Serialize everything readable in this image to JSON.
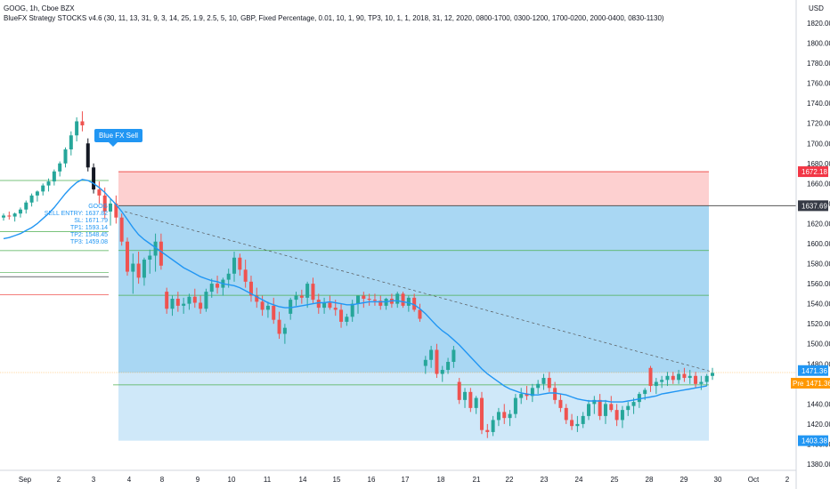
{
  "header": {
    "symbol_line": "GOOG, 1h, Cboe BZX",
    "indicator_line": "BlueFX Strategy STOCKS v4.6 (30, 11, 13, 31, 9, 3, 14, 25, 1.9, 2.5, 5, 10, GBP, Fixed Percentage, 0.01, 10, 1, 90, TP3, 10, 1, 1, 2018, 31, 12, 2020, 0800-1700, 0300-1200, 1700-0200, 2000-0400, 0830-1130)"
  },
  "signal_label": "Blue FX Sell",
  "info_block": {
    "ticker": "GOOG",
    "sell_entry": "SELL ENTRY: 1637.82",
    "sl": "SL: 1671.79",
    "tp1": "TP1: 1593.14",
    "tp2": "TP2: 1548.45",
    "tp3": "TP3: 1459.08"
  },
  "currency": "USD",
  "price_labels": {
    "sl": "1672.18",
    "entry": "1637.69",
    "current": "1471.36",
    "pre_tag": "Pre",
    "pre_value": "1471.36",
    "bottom": "1403.38"
  },
  "colors": {
    "bull": "#26a69a",
    "bear": "#ef5350",
    "accent_blue": "#2196f3",
    "sl_zone": "#fdd0d0",
    "profit_zone": "#a9d7f3",
    "lower_zone": "#cfe8f9",
    "pre_orange": "#ff9800",
    "sl_red": "#f23645",
    "entry_gray": "#363a45"
  },
  "chart_data": {
    "type": "candlestick",
    "title": "",
    "ylim": [
      1365,
      1840
    ],
    "y_ticks": [
      1380,
      1400,
      1420,
      1440,
      1460,
      1480,
      1500,
      1520,
      1540,
      1560,
      1580,
      1600,
      1620,
      1640,
      1660,
      1680,
      1700,
      1720,
      1740,
      1760,
      1780,
      1800,
      1820
    ],
    "x_ticks": [
      "Sep",
      "2",
      "3",
      "4",
      "8",
      "9",
      "10",
      "11",
      "14",
      "15",
      "16",
      "17",
      "18",
      "21",
      "22",
      "23",
      "24",
      "25",
      "28",
      "29",
      "30",
      "Oct",
      "2"
    ],
    "levels": {
      "stop_loss": 1671.79,
      "entry": 1637.82,
      "tp1": 1593.14,
      "tp2": 1548.45,
      "tp3": 1459.08,
      "zone_bottom": 1403.38,
      "current": 1471.36
    },
    "candles": [
      [
        1626,
        1630,
        1623,
        1628
      ],
      [
        1628,
        1632,
        1624,
        1627
      ],
      [
        1627,
        1631,
        1622,
        1630
      ],
      [
        1630,
        1636,
        1626,
        1634
      ],
      [
        1634,
        1643,
        1630,
        1641
      ],
      [
        1641,
        1650,
        1637,
        1648
      ],
      [
        1648,
        1653,
        1642,
        1652
      ],
      [
        1652,
        1660,
        1648,
        1658
      ],
      [
        1658,
        1665,
        1652,
        1662
      ],
      [
        1662,
        1674,
        1658,
        1672
      ],
      [
        1672,
        1682,
        1667,
        1680
      ],
      [
        1680,
        1696,
        1676,
        1694
      ],
      [
        1694,
        1712,
        1688,
        1708
      ],
      [
        1708,
        1726,
        1702,
        1722
      ],
      [
        1722,
        1732,
        1712,
        1718
      ],
      [
        1700,
        1705,
        1672,
        1676
      ],
      [
        1676,
        1680,
        1650,
        1654
      ],
      [
        1654,
        1662,
        1640,
        1648
      ],
      [
        1648,
        1656,
        1625,
        1632
      ],
      [
        1632,
        1645,
        1618,
        1640
      ],
      [
        1640,
        1648,
        1620,
        1626
      ],
      [
        1626,
        1630,
        1598,
        1602
      ],
      [
        1602,
        1606,
        1568,
        1572
      ],
      [
        1572,
        1590,
        1550,
        1580
      ],
      [
        1580,
        1592,
        1560,
        1566
      ],
      [
        1566,
        1586,
        1558,
        1584
      ],
      [
        1584,
        1594,
        1570,
        1588
      ],
      [
        1588,
        1610,
        1572,
        1602
      ],
      [
        1602,
        1610,
        1574,
        1578
      ],
      [
        1552,
        1556,
        1530,
        1535
      ],
      [
        1535,
        1548,
        1528,
        1545
      ],
      [
        1545,
        1552,
        1532,
        1538
      ],
      [
        1538,
        1546,
        1530,
        1540
      ],
      [
        1540,
        1550,
        1534,
        1547
      ],
      [
        1547,
        1555,
        1536,
        1541
      ],
      [
        1541,
        1548,
        1530,
        1535
      ],
      [
        1535,
        1555,
        1532,
        1552
      ],
      [
        1552,
        1565,
        1546,
        1560
      ],
      [
        1560,
        1568,
        1550,
        1556
      ],
      [
        1556,
        1566,
        1548,
        1564
      ],
      [
        1564,
        1575,
        1556,
        1570
      ],
      [
        1570,
        1592,
        1562,
        1586
      ],
      [
        1586,
        1590,
        1568,
        1574
      ],
      [
        1574,
        1584,
        1556,
        1562
      ],
      [
        1562,
        1568,
        1542,
        1548
      ],
      [
        1548,
        1556,
        1536,
        1542
      ],
      [
        1542,
        1548,
        1528,
        1534
      ],
      [
        1534,
        1542,
        1526,
        1538
      ],
      [
        1538,
        1546,
        1520,
        1524
      ],
      [
        1524,
        1532,
        1505,
        1510
      ],
      [
        1510,
        1520,
        1500,
        1516
      ],
      [
        1530,
        1546,
        1524,
        1544
      ],
      [
        1544,
        1552,
        1538,
        1548
      ],
      [
        1548,
        1554,
        1540,
        1546
      ],
      [
        1546,
        1562,
        1536,
        1560
      ],
      [
        1560,
        1566,
        1540,
        1544
      ],
      [
        1544,
        1550,
        1530,
        1536
      ],
      [
        1536,
        1546,
        1530,
        1541
      ],
      [
        1541,
        1548,
        1534,
        1536
      ],
      [
        1536,
        1544,
        1528,
        1534
      ],
      [
        1534,
        1540,
        1516,
        1522
      ],
      [
        1522,
        1530,
        1518,
        1527
      ],
      [
        1527,
        1544,
        1522,
        1540
      ],
      [
        1540,
        1548,
        1530,
        1548
      ],
      [
        1548,
        1552,
        1536,
        1545
      ],
      [
        1545,
        1550,
        1538,
        1544
      ],
      [
        1544,
        1550,
        1538,
        1543
      ],
      [
        1543,
        1548,
        1534,
        1538
      ],
      [
        1538,
        1546,
        1534,
        1545
      ],
      [
        1545,
        1550,
        1536,
        1540
      ],
      [
        1540,
        1552,
        1536,
        1550
      ],
      [
        1550,
        1552,
        1536,
        1538
      ],
      [
        1538,
        1548,
        1532,
        1546
      ],
      [
        1546,
        1550,
        1532,
        1534
      ],
      [
        1534,
        1540,
        1522,
        1525
      ],
      [
        1478,
        1488,
        1470,
        1484
      ],
      [
        1484,
        1498,
        1476,
        1494
      ],
      [
        1494,
        1500,
        1466,
        1470
      ],
      [
        1470,
        1478,
        1462,
        1474
      ],
      [
        1474,
        1486,
        1470,
        1482
      ],
      [
        1482,
        1498,
        1476,
        1494
      ],
      [
        1462,
        1466,
        1440,
        1444
      ],
      [
        1444,
        1456,
        1436,
        1452
      ],
      [
        1452,
        1456,
        1432,
        1436
      ],
      [
        1436,
        1448,
        1430,
        1446
      ],
      [
        1446,
        1452,
        1410,
        1414
      ],
      [
        1414,
        1420,
        1406,
        1412
      ],
      [
        1412,
        1428,
        1408,
        1424
      ],
      [
        1424,
        1436,
        1418,
        1432
      ],
      [
        1432,
        1440,
        1420,
        1426
      ],
      [
        1426,
        1434,
        1418,
        1430
      ],
      [
        1430,
        1450,
        1426,
        1446
      ],
      [
        1446,
        1456,
        1440,
        1450
      ],
      [
        1450,
        1458,
        1444,
        1448
      ],
      [
        1448,
        1460,
        1442,
        1456
      ],
      [
        1456,
        1464,
        1450,
        1460
      ],
      [
        1460,
        1470,
        1454,
        1466
      ],
      [
        1466,
        1472,
        1452,
        1456
      ],
      [
        1456,
        1462,
        1440,
        1444
      ],
      [
        1444,
        1450,
        1432,
        1436
      ],
      [
        1436,
        1440,
        1420,
        1424
      ],
      [
        1424,
        1430,
        1414,
        1418
      ],
      [
        1418,
        1428,
        1412,
        1420
      ],
      [
        1420,
        1432,
        1416,
        1428
      ],
      [
        1428,
        1444,
        1424,
        1440
      ],
      [
        1440,
        1448,
        1430,
        1444
      ],
      [
        1444,
        1450,
        1424,
        1428
      ],
      [
        1428,
        1444,
        1420,
        1440
      ],
      [
        1440,
        1448,
        1432,
        1434
      ],
      [
        1434,
        1440,
        1418,
        1424
      ],
      [
        1424,
        1438,
        1416,
        1434
      ],
      [
        1434,
        1442,
        1428,
        1438
      ],
      [
        1438,
        1446,
        1430,
        1442
      ],
      [
        1442,
        1452,
        1436,
        1450
      ],
      [
        1450,
        1456,
        1444,
        1454
      ],
      [
        1476,
        1478,
        1452,
        1458
      ],
      [
        1458,
        1466,
        1450,
        1462
      ],
      [
        1462,
        1468,
        1456,
        1464
      ],
      [
        1464,
        1472,
        1458,
        1468
      ],
      [
        1468,
        1472,
        1460,
        1464
      ],
      [
        1464,
        1474,
        1460,
        1470
      ],
      [
        1470,
        1476,
        1462,
        1466
      ],
      [
        1466,
        1474,
        1460,
        1468
      ],
      [
        1468,
        1472,
        1456,
        1460
      ],
      [
        1460,
        1468,
        1454,
        1462
      ],
      [
        1462,
        1470,
        1458,
        1468
      ],
      [
        1468,
        1476,
        1464,
        1471
      ]
    ],
    "moving_average": [
      1605,
      1606,
      1608,
      1610,
      1613,
      1616,
      1620,
      1625,
      1630,
      1636,
      1643,
      1650,
      1656,
      1661,
      1664,
      1663,
      1660,
      1656,
      1651,
      1645,
      1639,
      1632,
      1624,
      1616,
      1609,
      1604,
      1600,
      1596,
      1592,
      1588,
      1584,
      1580,
      1576,
      1573,
      1570,
      1567,
      1565,
      1563,
      1562,
      1560,
      1559,
      1558,
      1556,
      1553,
      1550,
      1547,
      1544,
      1541,
      1539,
      1537,
      1536,
      1536,
      1537,
      1538,
      1539,
      1540,
      1541,
      1541,
      1542,
      1541,
      1540,
      1539,
      1539,
      1540,
      1541,
      1542,
      1542,
      1542,
      1542,
      1543,
      1543,
      1542,
      1541,
      1539,
      1535,
      1530,
      1524,
      1518,
      1513,
      1509,
      1504,
      1499,
      1493,
      1487,
      1481,
      1475,
      1470,
      1466,
      1462,
      1458,
      1455,
      1453,
      1451,
      1450,
      1449,
      1449,
      1450,
      1451,
      1451,
      1450,
      1449,
      1447,
      1445,
      1444,
      1443,
      1443,
      1443,
      1443,
      1442,
      1442,
      1442,
      1443,
      1444,
      1445,
      1446,
      1447,
      1448,
      1450,
      1451,
      1452,
      1453,
      1454,
      1455,
      1456,
      1457,
      1458
    ]
  }
}
